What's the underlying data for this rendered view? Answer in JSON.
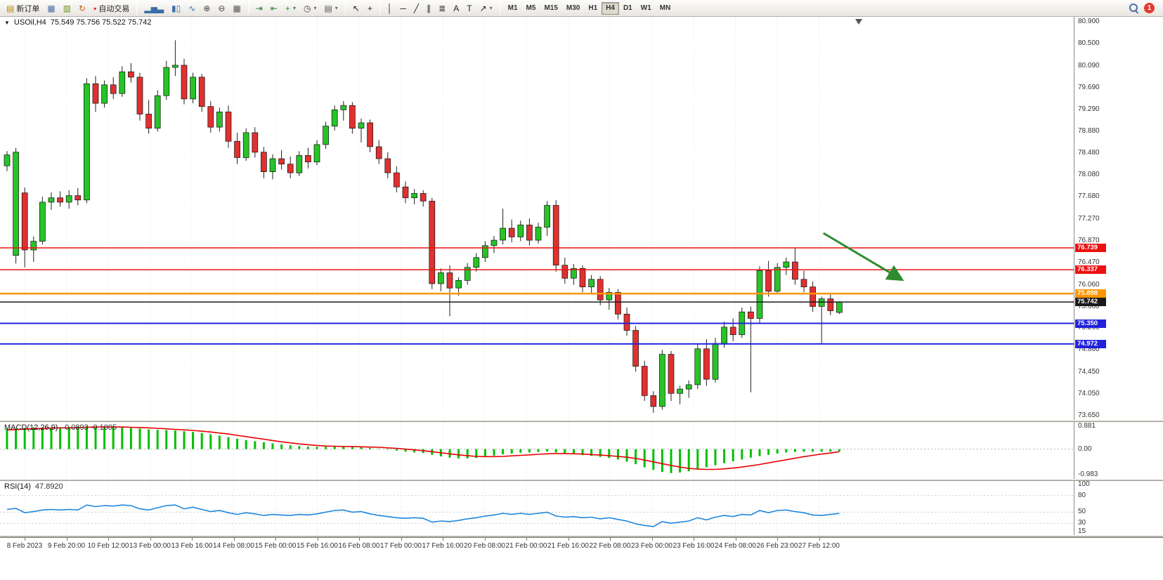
{
  "icons": {
    "collapse_triangle": "▼",
    "caret_down": "▾"
  },
  "toolbar": {
    "groups": [
      {
        "items": [
          {
            "name": "new-order-button",
            "icon": "new-order-icon",
            "glyph": "▤",
            "glyph_color": "#b8860b",
            "label": "新订单"
          },
          {
            "name": "charts-button",
            "icon": "chart-window-icon",
            "glyph": "▦",
            "glyph_color": "#4a6fa5"
          },
          {
            "name": "market-watch-button",
            "icon": "market-watch-icon",
            "glyph": "▥",
            "glyph_color": "#6b8e23"
          },
          {
            "name": "navigator-button",
            "icon": "refresh-icon",
            "glyph": "↻",
            "glyph_color": "#c06014"
          },
          {
            "name": "autotrading-button",
            "icon": "autotrading-status-icon",
            "glyph": "▪",
            "glyph_color": "#d32f2f",
            "label": "自动交易"
          }
        ]
      },
      {
        "items": [
          {
            "name": "bar-chart-button",
            "icon": "bar-chart-icon",
            "glyph": "▂▅▃",
            "glyph_color": "#3a6ea5"
          },
          {
            "name": "candlestick-chart-button",
            "icon": "candlestick-chart-icon",
            "glyph": "▮▯",
            "glyph_color": "#3a6ea5"
          },
          {
            "name": "line-chart-button",
            "icon": "line-chart-icon",
            "glyph": "∿",
            "glyph_color": "#3a6ea5"
          },
          {
            "name": "zoom-in-button",
            "icon": "zoom-in-icon",
            "glyph": "⊕",
            "glyph_color": "#444444"
          },
          {
            "name": "zoom-out-button",
            "icon": "zoom-out-icon",
            "glyph": "⊖",
            "glyph_color": "#444444"
          },
          {
            "name": "tile-windows-button",
            "icon": "tile-windows-icon",
            "glyph": "▦",
            "glyph_color": "#555555"
          }
        ]
      },
      {
        "items": [
          {
            "name": "auto-scroll-button",
            "icon": "auto-scroll-icon",
            "glyph": "⇥",
            "glyph_color": "#2e7d32"
          },
          {
            "name": "chart-shift-button",
            "icon": "chart-shift-icon",
            "glyph": "⇤",
            "glyph_color": "#2e7d32"
          },
          {
            "name": "add-indicator-button",
            "icon": "add-indicator-icon",
            "glyph": "+",
            "glyph_color": "#1b9e1b",
            "caret": true
          },
          {
            "name": "period-button",
            "icon": "clock-icon",
            "glyph": "◷",
            "glyph_color": "#444444",
            "caret": true
          },
          {
            "name": "template-button",
            "icon": "template-icon",
            "glyph": "▤",
            "glyph_color": "#555555",
            "caret": true
          }
        ]
      },
      {
        "items": [
          {
            "name": "cursor-button",
            "icon": "cursor-icon",
            "glyph": "↖",
            "glyph_color": "#222222"
          },
          {
            "name": "crosshair-button",
            "icon": "crosshair-icon",
            "glyph": "+",
            "glyph_color": "#222222"
          }
        ]
      },
      {
        "items": [
          {
            "name": "vertical-line-button",
            "icon": "vertical-line-icon",
            "glyph": "│",
            "glyph_color": "#222222"
          },
          {
            "name": "horizontal-line-button",
            "icon": "horizontal-line-icon",
            "glyph": "─",
            "glyph_color": "#222222"
          },
          {
            "name": "trendline-button",
            "icon": "trendline-icon",
            "glyph": "╱",
            "glyph_color": "#222222"
          },
          {
            "name": "channel-button",
            "icon": "channel-icon",
            "glyph": "∥",
            "glyph_color": "#222222"
          },
          {
            "name": "fibonacci-button",
            "icon": "fibonacci-icon",
            "glyph": "≣",
            "glyph_color": "#222222"
          },
          {
            "name": "text-button",
            "icon": "text-icon",
            "glyph": "A",
            "glyph_color": "#222222"
          },
          {
            "name": "text-label-button",
            "icon": "text-label-icon",
            "glyph": "T",
            "glyph_color": "#222222"
          },
          {
            "name": "arrows-button",
            "icon": "arrow-object-icon",
            "glyph": "↗",
            "glyph_color": "#222222",
            "caret": true
          }
        ]
      }
    ],
    "timeframes": [
      "M1",
      "M5",
      "M15",
      "M30",
      "H1",
      "H4",
      "D1",
      "W1",
      "MN"
    ],
    "active_timeframe": "H4",
    "notification_count": "1"
  },
  "chart": {
    "symbol_period": "USOil,H4",
    "ohlc": "75.549 75.756 75.522 75.742",
    "macd_label": "MACD(12,26,9)",
    "macd_values": "-0.0893 -0.1005",
    "rsi_label": "RSI(14)",
    "rsi_value": "47.8920"
  },
  "chart_data": {
    "type": "candlestick",
    "symbol": "USOil",
    "timeframe": "H4",
    "last_ohlc": {
      "open": 75.549,
      "high": 75.756,
      "low": 75.522,
      "close": 75.742
    },
    "ylim": [
      73.65,
      80.9
    ],
    "price_ticks": [
      "80.900",
      "80.500",
      "80.090",
      "79.690",
      "79.290",
      "78.880",
      "78.480",
      "78.080",
      "77.680",
      "77.270",
      "76.870",
      "76.470",
      "76.060",
      "75.660",
      "75.260",
      "74.860",
      "74.450",
      "74.050",
      "73.650"
    ],
    "colors": {
      "bull": "#27c427",
      "bear": "#e03030",
      "wick": "#222222",
      "candle_border": "#111111",
      "grid": "#e2e2e2",
      "background": "#ffffff"
    },
    "candles": [
      [
        78.25,
        78.52,
        78.15,
        78.45
      ],
      [
        76.6,
        78.58,
        76.45,
        78.5
      ],
      [
        77.75,
        77.85,
        76.38,
        76.7
      ],
      [
        76.7,
        76.95,
        76.48,
        76.86
      ],
      [
        76.86,
        77.68,
        76.8,
        77.58
      ],
      [
        77.58,
        77.76,
        77.44,
        77.66
      ],
      [
        77.66,
        77.78,
        77.5,
        77.58
      ],
      [
        77.58,
        77.8,
        77.46,
        77.7
      ],
      [
        77.7,
        77.84,
        77.52,
        77.62
      ],
      [
        77.62,
        79.86,
        77.56,
        79.76
      ],
      [
        79.76,
        79.9,
        79.24,
        79.4
      ],
      [
        79.4,
        79.82,
        79.32,
        79.74
      ],
      [
        79.74,
        79.88,
        79.48,
        79.58
      ],
      [
        79.58,
        80.08,
        79.52,
        79.98
      ],
      [
        79.98,
        80.14,
        79.78,
        79.88
      ],
      [
        79.88,
        79.96,
        79.08,
        79.2
      ],
      [
        79.2,
        79.46,
        78.84,
        78.94
      ],
      [
        78.94,
        79.64,
        78.88,
        79.54
      ],
      [
        79.54,
        80.18,
        79.46,
        80.06
      ],
      [
        80.06,
        80.56,
        79.9,
        80.1
      ],
      [
        80.1,
        80.22,
        79.38,
        79.48
      ],
      [
        79.48,
        79.96,
        79.4,
        79.88
      ],
      [
        79.88,
        79.94,
        79.24,
        79.34
      ],
      [
        79.34,
        79.44,
        78.86,
        78.96
      ],
      [
        78.96,
        79.32,
        78.88,
        79.24
      ],
      [
        79.24,
        79.36,
        78.58,
        78.7
      ],
      [
        78.7,
        78.86,
        78.28,
        78.4
      ],
      [
        78.4,
        78.94,
        78.34,
        78.86
      ],
      [
        78.86,
        78.96,
        78.4,
        78.5
      ],
      [
        78.5,
        78.6,
        78.02,
        78.14
      ],
      [
        78.14,
        78.46,
        78.0,
        78.38
      ],
      [
        78.38,
        78.54,
        78.18,
        78.28
      ],
      [
        78.28,
        78.42,
        78.02,
        78.12
      ],
      [
        78.12,
        78.52,
        78.06,
        78.44
      ],
      [
        78.44,
        78.58,
        78.2,
        78.32
      ],
      [
        78.32,
        78.72,
        78.26,
        78.64
      ],
      [
        78.64,
        79.06,
        78.56,
        78.98
      ],
      [
        78.98,
        79.36,
        78.9,
        79.28
      ],
      [
        79.28,
        79.44,
        79.08,
        79.36
      ],
      [
        79.36,
        79.42,
        78.84,
        78.94
      ],
      [
        78.94,
        79.12,
        78.68,
        79.04
      ],
      [
        79.04,
        79.1,
        78.5,
        78.6
      ],
      [
        78.6,
        78.72,
        78.28,
        78.38
      ],
      [
        78.38,
        78.5,
        78.02,
        78.12
      ],
      [
        78.12,
        78.24,
        77.76,
        77.86
      ],
      [
        77.86,
        77.96,
        77.56,
        77.66
      ],
      [
        77.66,
        77.82,
        77.54,
        77.74
      ],
      [
        77.74,
        77.8,
        77.5,
        77.6
      ],
      [
        77.6,
        77.66,
        75.98,
        76.08
      ],
      [
        76.08,
        76.36,
        75.94,
        76.28
      ],
      [
        76.28,
        76.42,
        75.48,
        76.0
      ],
      [
        76.0,
        76.2,
        75.86,
        76.14
      ],
      [
        76.14,
        76.46,
        76.06,
        76.38
      ],
      [
        76.38,
        76.64,
        76.3,
        76.56
      ],
      [
        76.56,
        76.86,
        76.48,
        76.78
      ],
      [
        76.78,
        76.96,
        76.64,
        76.88
      ],
      [
        76.88,
        77.46,
        76.8,
        77.1
      ],
      [
        77.1,
        77.26,
        76.84,
        76.94
      ],
      [
        76.94,
        77.24,
        76.86,
        77.16
      ],
      [
        77.16,
        77.28,
        76.78,
        76.88
      ],
      [
        76.88,
        77.2,
        76.82,
        77.12
      ],
      [
        77.12,
        77.6,
        76.96,
        77.52
      ],
      [
        77.52,
        77.62,
        76.3,
        76.42
      ],
      [
        76.42,
        76.56,
        76.08,
        76.18
      ],
      [
        76.18,
        76.44,
        76.06,
        76.36
      ],
      [
        76.36,
        76.42,
        75.92,
        76.02
      ],
      [
        76.02,
        76.24,
        75.9,
        76.16
      ],
      [
        76.16,
        76.22,
        75.68,
        75.78
      ],
      [
        75.78,
        76.0,
        75.6,
        75.92
      ],
      [
        75.92,
        75.98,
        75.42,
        75.52
      ],
      [
        75.52,
        75.64,
        75.12,
        75.22
      ],
      [
        75.22,
        75.3,
        74.46,
        74.56
      ],
      [
        74.56,
        74.66,
        73.92,
        74.02
      ],
      [
        74.02,
        74.1,
        73.7,
        73.82
      ],
      [
        73.82,
        74.86,
        73.76,
        74.78
      ],
      [
        74.78,
        74.84,
        73.92,
        74.06
      ],
      [
        74.06,
        74.2,
        73.86,
        74.14
      ],
      [
        74.14,
        74.3,
        73.98,
        74.22
      ],
      [
        74.22,
        74.96,
        74.14,
        74.88
      ],
      [
        74.88,
        75.06,
        74.2,
        74.32
      ],
      [
        74.32,
        75.08,
        74.26,
        74.98
      ],
      [
        74.98,
        75.38,
        74.9,
        75.28
      ],
      [
        75.28,
        75.44,
        75.02,
        75.14
      ],
      [
        75.14,
        75.64,
        75.08,
        75.56
      ],
      [
        75.56,
        75.66,
        74.08,
        75.44
      ],
      [
        75.44,
        76.4,
        75.36,
        76.32
      ],
      [
        76.32,
        76.5,
        75.84,
        75.94
      ],
      [
        75.94,
        76.46,
        75.88,
        76.38
      ],
      [
        76.38,
        76.56,
        76.24,
        76.48
      ],
      [
        76.48,
        76.74,
        76.06,
        76.16
      ],
      [
        76.16,
        76.32,
        75.92,
        76.02
      ],
      [
        76.02,
        76.12,
        75.56,
        75.66
      ],
      [
        75.66,
        75.84,
        74.98,
        75.8
      ],
      [
        75.8,
        75.88,
        75.5,
        75.58
      ],
      [
        75.549,
        75.756,
        75.522,
        75.742
      ]
    ],
    "hlines": [
      {
        "price": 76.739,
        "label": "76.739",
        "color": "#ee1111",
        "width": 1.5
      },
      {
        "price": 76.337,
        "label": "76.337",
        "color": "#ee1111",
        "width": 1.5
      },
      {
        "price": 75.898,
        "label": "75.898",
        "color": "#ff9500",
        "width": 2.5
      },
      {
        "price": 75.742,
        "label": "75.742",
        "color": "#1a1a1a",
        "width": 1.5,
        "current": true
      },
      {
        "price": 75.35,
        "label": "75.350",
        "color": "#2222dd",
        "width": 2
      },
      {
        "price": 74.972,
        "label": "74.972",
        "color": "#2222dd",
        "width": 2
      }
    ],
    "arrow": {
      "index1": 92.2,
      "price1": 77.01,
      "index2": 101,
      "price2": 76.16,
      "color": "#2e8b2e"
    },
    "macd": {
      "label": "MACD(12,26,9)",
      "main_value": -0.0893,
      "signal_value": -0.1005,
      "ticks": [
        "0.881",
        "0.00",
        "-0.983"
      ],
      "range": [
        -0.983,
        0.881
      ],
      "hist_color": "#00c000",
      "signal_color": "#e60000",
      "histogram": [
        0.78,
        0.8,
        0.82,
        0.84,
        0.83,
        0.82,
        0.83,
        0.85,
        0.86,
        0.88,
        0.87,
        0.86,
        0.85,
        0.84,
        0.82,
        0.79,
        0.76,
        0.74,
        0.73,
        0.72,
        0.69,
        0.66,
        0.62,
        0.57,
        0.52,
        0.46,
        0.4,
        0.35,
        0.3,
        0.26,
        0.22,
        0.18,
        0.15,
        0.12,
        0.1,
        0.09,
        0.09,
        0.1,
        0.11,
        0.1,
        0.08,
        0.05,
        0.02,
        -0.02,
        -0.06,
        -0.1,
        -0.13,
        -0.15,
        -0.22,
        -0.28,
        -0.33,
        -0.36,
        -0.36,
        -0.34,
        -0.3,
        -0.25,
        -0.2,
        -0.17,
        -0.14,
        -0.13,
        -0.11,
        -0.09,
        -0.13,
        -0.17,
        -0.2,
        -0.23,
        -0.26,
        -0.3,
        -0.34,
        -0.4,
        -0.48,
        -0.58,
        -0.7,
        -0.8,
        -0.88,
        -0.92,
        -0.9,
        -0.85,
        -0.78,
        -0.7,
        -0.62,
        -0.54,
        -0.47,
        -0.4,
        -0.33,
        -0.27,
        -0.22,
        -0.17,
        -0.13,
        -0.11,
        -0.1,
        -0.1,
        -0.1,
        -0.1,
        -0.0893
      ],
      "signal": [
        0.74,
        0.75,
        0.77,
        0.78,
        0.8,
        0.81,
        0.82,
        0.82,
        0.83,
        0.84,
        0.85,
        0.85,
        0.85,
        0.85,
        0.84,
        0.83,
        0.82,
        0.8,
        0.78,
        0.76,
        0.74,
        0.72,
        0.69,
        0.66,
        0.62,
        0.58,
        0.53,
        0.48,
        0.43,
        0.38,
        0.33,
        0.28,
        0.24,
        0.2,
        0.17,
        0.14,
        0.12,
        0.11,
        0.1,
        0.1,
        0.09,
        0.08,
        0.07,
        0.05,
        0.03,
        0.0,
        -0.03,
        -0.06,
        -0.1,
        -0.14,
        -0.18,
        -0.22,
        -0.25,
        -0.28,
        -0.29,
        -0.29,
        -0.28,
        -0.26,
        -0.24,
        -0.22,
        -0.2,
        -0.18,
        -0.17,
        -0.17,
        -0.18,
        -0.19,
        -0.21,
        -0.23,
        -0.25,
        -0.28,
        -0.31,
        -0.36,
        -0.42,
        -0.49,
        -0.56,
        -0.63,
        -0.69,
        -0.74,
        -0.77,
        -0.78,
        -0.78,
        -0.76,
        -0.73,
        -0.69,
        -0.64,
        -0.59,
        -0.53,
        -0.47,
        -0.41,
        -0.35,
        -0.29,
        -0.24,
        -0.19,
        -0.15,
        -0.1005
      ]
    },
    "rsi": {
      "label": "RSI(14)",
      "value": 47.892,
      "ticks": [
        "100",
        "80",
        "50",
        "30",
        "15"
      ],
      "range": [
        15,
        100
      ],
      "levels": [
        80,
        50,
        30
      ],
      "color": "#1e86e0",
      "values": [
        55,
        57,
        49,
        51,
        54,
        55,
        54,
        55,
        54,
        63,
        60,
        62,
        61,
        63,
        62,
        56,
        54,
        58,
        62,
        63,
        56,
        59,
        55,
        51,
        53,
        49,
        46,
        49,
        47,
        44,
        46,
        45,
        44,
        46,
        45,
        47,
        50,
        53,
        54,
        50,
        51,
        47,
        44,
        42,
        40,
        39,
        40,
        39,
        32,
        34,
        33,
        35,
        38,
        40,
        43,
        45,
        48,
        46,
        48,
        46,
        48,
        50,
        43,
        41,
        42,
        40,
        41,
        38,
        40,
        37,
        34,
        29,
        26,
        24,
        33,
        30,
        32,
        34,
        40,
        36,
        41,
        44,
        42,
        46,
        45,
        53,
        49,
        53,
        54,
        51,
        49,
        45,
        44,
        46,
        47.892
      ]
    },
    "time_labels": [
      "8 Feb 2023",
      "9 Feb 20:00",
      "10 Feb 12:00",
      "13 Feb 00:00",
      "13 Feb 16:00",
      "14 Feb 08:00",
      "15 Feb 00:00",
      "15 Feb 16:00",
      "16 Feb 08:00",
      "17 Feb 00:00",
      "17 Feb 16:00",
      "20 Feb 08:00",
      "21 Feb 00:00",
      "21 Feb 16:00",
      "22 Feb 08:00",
      "23 Feb 00:00",
      "23 Feb 16:00",
      "24 Feb 08:00",
      "26 Feb 23:00",
      "27 Feb 12:00"
    ]
  }
}
